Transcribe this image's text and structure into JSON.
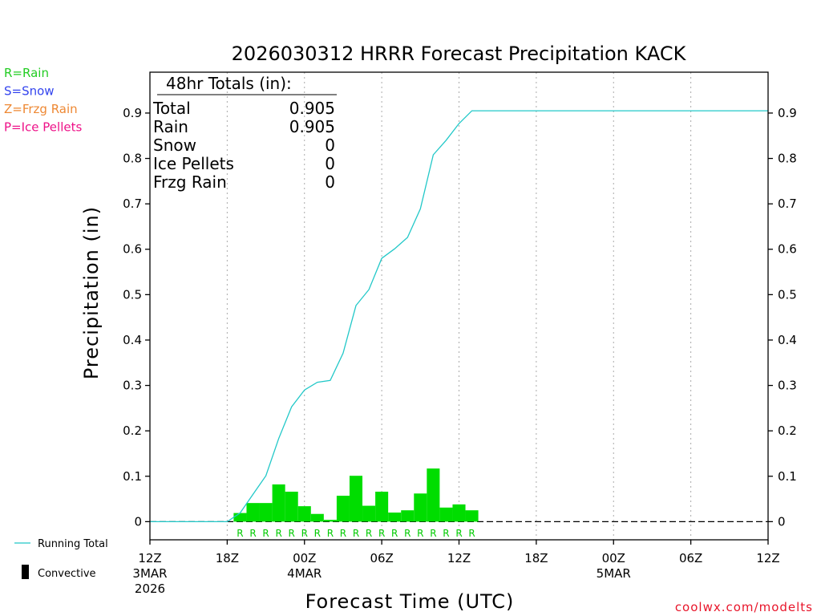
{
  "chart_data": {
    "type": "bar",
    "title": "2026030312 HRRR Forecast Precipitation KACK",
    "xlabel": "Forecast Time (UTC)",
    "ylabel": "Precipitation (in)",
    "ylim": [
      -0.04,
      0.99
    ],
    "yticks": [
      "0",
      "0.1",
      "0.2",
      "0.3",
      "0.4",
      "0.5",
      "0.6",
      "0.7",
      "0.8",
      "0.9"
    ],
    "ytick_values": [
      0,
      0.1,
      0.2,
      0.3,
      0.4,
      0.5,
      0.6,
      0.7,
      0.8,
      0.9
    ],
    "xlim_hours": [
      0,
      48
    ],
    "x_ticks": [
      {
        "hour": 0,
        "label": "12Z",
        "sub1": "3MAR",
        "sub2": "2026"
      },
      {
        "hour": 6,
        "label": "18Z",
        "sub1": "",
        "sub2": ""
      },
      {
        "hour": 12,
        "label": "00Z",
        "sub1": "4MAR",
        "sub2": ""
      },
      {
        "hour": 18,
        "label": "06Z",
        "sub1": "",
        "sub2": ""
      },
      {
        "hour": 24,
        "label": "12Z",
        "sub1": "",
        "sub2": ""
      },
      {
        "hour": 30,
        "label": "18Z",
        "sub1": "",
        "sub2": ""
      },
      {
        "hour": 36,
        "label": "00Z",
        "sub1": "5MAR",
        "sub2": ""
      },
      {
        "hour": 42,
        "label": "06Z",
        "sub1": "",
        "sub2": ""
      },
      {
        "hour": 48,
        "label": "12Z",
        "sub1": "",
        "sub2": ""
      }
    ],
    "grid": "vertical-dotted",
    "hourly_precip": {
      "hours": [
        7,
        8,
        9,
        10,
        11,
        12,
        13,
        14,
        15,
        16,
        17,
        18,
        19,
        20,
        21,
        22,
        23,
        24,
        25
      ],
      "values": [
        0.019,
        0.041,
        0.041,
        0.082,
        0.066,
        0.034,
        0.017,
        0.004,
        0.057,
        0.101,
        0.035,
        0.066,
        0.02,
        0.025,
        0.062,
        0.117,
        0.031,
        0.038,
        0.025
      ],
      "ptype": [
        "R",
        "R",
        "R",
        "R",
        "R",
        "R",
        "R",
        "R",
        "R",
        "R",
        "R",
        "R",
        "R",
        "R",
        "R",
        "R",
        "R",
        "R",
        "R"
      ]
    },
    "running_total": {
      "name": "Running Total",
      "hours": [
        0,
        6,
        7,
        8,
        9,
        10,
        11,
        12,
        13,
        14,
        15,
        16,
        17,
        18,
        19,
        20,
        21,
        22,
        23,
        24,
        25,
        48
      ],
      "values": [
        0,
        0,
        0.019,
        0.06,
        0.101,
        0.183,
        0.253,
        0.29,
        0.307,
        0.311,
        0.371,
        0.476,
        0.511,
        0.58,
        0.601,
        0.626,
        0.689,
        0.808,
        0.84,
        0.877,
        0.905,
        0.905
      ]
    },
    "totals_box": {
      "heading": "48hr Totals (in):",
      "rows": [
        {
          "label": "Total",
          "value": "0.905"
        },
        {
          "label": "Rain",
          "value": "0.905"
        },
        {
          "label": "Snow",
          "value": "0"
        },
        {
          "label": "Ice Pellets",
          "value": "0"
        },
        {
          "label": "Frzg Rain",
          "value": "0"
        }
      ]
    },
    "ptype_legend": [
      {
        "text": "R=Rain",
        "color": "#22cc22"
      },
      {
        "text": "S=Snow",
        "color": "#3344ee"
      },
      {
        "text": "Z=Frzg Rain",
        "color": "#ee8833"
      },
      {
        "text": "P=Ice Pellets",
        "color": "#ee1188"
      }
    ],
    "series_legend": [
      {
        "name": "Running Total",
        "color": "#22c8c8"
      },
      {
        "name": "Convective",
        "color": "#000000"
      }
    ],
    "colors": {
      "bar": "#00dd00",
      "running_total": "#22c8c8",
      "axis": "#000000",
      "grid": "#aaaaaa"
    },
    "credit": "coolwx.com/modelts"
  }
}
